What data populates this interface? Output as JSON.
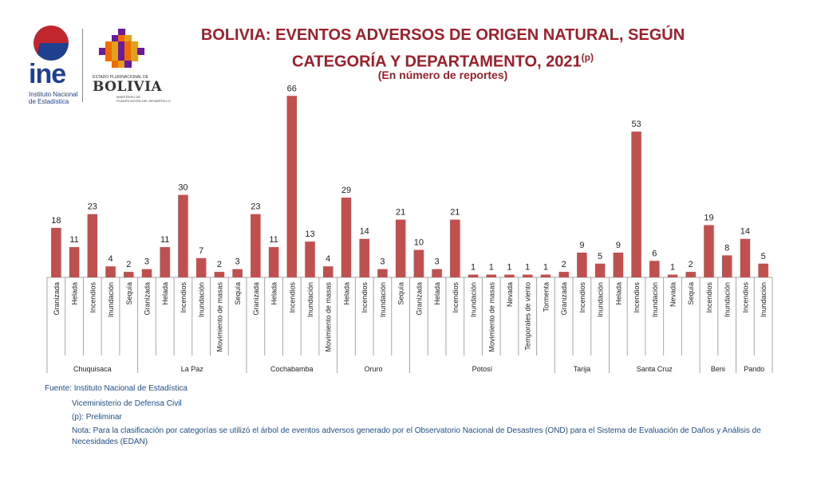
{
  "header": {
    "title_line1": "BOLIVIA: EVENTOS ADVERSOS DE ORIGEN NATURAL, SEGÚN",
    "title_line2": "CATEGORÍA Y DEPARTAMENTO, 2021",
    "title_sup": "(p)",
    "subtitle": "(En número de reportes)"
  },
  "logos": {
    "ine_word": "ine",
    "ine_sub1": "Instituto Nacional",
    "ine_sub2": "de Estadística",
    "bolivia_state": "ESTADO PLURINACIONAL DE",
    "bolivia_name": "BOLIVIA",
    "bolivia_ministry1": "MINISTERIO DE",
    "bolivia_ministry2": "PLANIFICACIÓN DEL DESARROLLO"
  },
  "chart_data": {
    "type": "bar",
    "bar_color": "#c0504d",
    "groups": [
      {
        "name": "Chuquisaca",
        "categories": [
          "Granizada",
          "Helada",
          "Incendios",
          "Inundación",
          "Sequía"
        ],
        "values": [
          18,
          11,
          23,
          4,
          2
        ]
      },
      {
        "name": "La Paz",
        "categories": [
          "Granizada",
          "Helada",
          "Incendios",
          "Inundación",
          "Movimiento de masas",
          "Sequía"
        ],
        "values": [
          3,
          11,
          30,
          7,
          2,
          3
        ]
      },
      {
        "name": "Cochabamba",
        "categories": [
          "Granizada",
          "Helada",
          "Incendios",
          "Inundación",
          "Movimiento de masas"
        ],
        "values": [
          23,
          11,
          66,
          13,
          4
        ]
      },
      {
        "name": "Oruro",
        "categories": [
          "Helada",
          "Incendios",
          "Inundación",
          "Sequía"
        ],
        "values": [
          29,
          14,
          3,
          21
        ]
      },
      {
        "name": "Potosí",
        "categories": [
          "Granizada",
          "Helada",
          "Incendios",
          "Inundación",
          "Movimiento de masas",
          "Nevada",
          "Temporales de viento",
          "Tormenta"
        ],
        "values": [
          10,
          3,
          21,
          1,
          1,
          1,
          1,
          1
        ]
      },
      {
        "name": "Tarija",
        "categories": [
          "Granizada",
          "Incendios",
          "Inundación"
        ],
        "values": [
          2,
          9,
          5
        ]
      },
      {
        "name": "Santa Cruz",
        "categories": [
          "Helada",
          "Incendios",
          "Inundación",
          "Nevada",
          "Sequía"
        ],
        "values": [
          9,
          53,
          6,
          1,
          2
        ]
      },
      {
        "name": "Beni",
        "categories": [
          "Incendios",
          "Inundación"
        ],
        "values": [
          19,
          8
        ]
      },
      {
        "name": "Pando",
        "categories": [
          "Incendios",
          "Inundación"
        ],
        "values": [
          14,
          5
        ]
      }
    ]
  },
  "notes": {
    "source": "Fuente: Instituto Nacional de Estadística",
    "source2": "Viceministerio de Defensa Civil",
    "prelim": "(p): Preliminar",
    "nota": "Nota: Para la clasificación por categorías se utilizó el árbol de eventos adversos generado por el Observatorio Nacional de Desastres (OND) para el Sistema de Evaluación de Daños y Análisis de Necesidades (EDAN)"
  }
}
